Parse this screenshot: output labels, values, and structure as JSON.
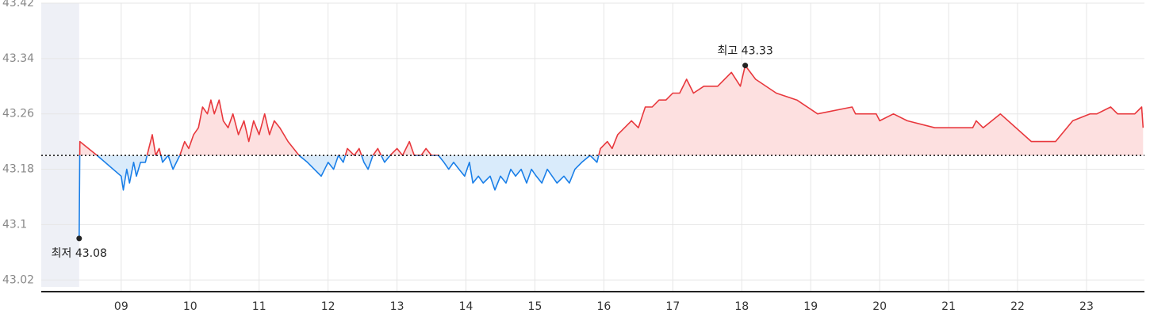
{
  "chart_data": {
    "type": "line",
    "x": [
      8.39,
      8.4,
      8.65,
      9.0,
      9.03,
      9.08,
      9.12,
      9.18,
      9.22,
      9.28,
      9.35,
      9.4,
      9.45,
      9.5,
      9.55,
      9.6,
      9.68,
      9.75,
      9.85,
      9.92,
      9.98,
      10.05,
      10.12,
      10.18,
      10.25,
      10.3,
      10.35,
      10.42,
      10.48,
      10.55,
      10.62,
      10.7,
      10.78,
      10.85,
      10.92,
      11.0,
      11.08,
      11.15,
      11.22,
      11.3,
      11.42,
      11.58,
      11.7,
      11.8,
      11.9,
      12.0,
      12.08,
      12.15,
      12.22,
      12.28,
      12.38,
      12.45,
      12.52,
      12.58,
      12.65,
      12.72,
      12.82,
      12.9,
      13.0,
      13.08,
      13.18,
      13.25,
      13.35,
      13.42,
      13.5,
      13.6,
      13.68,
      13.75,
      13.82,
      13.9,
      13.98,
      14.05,
      14.1,
      14.18,
      14.25,
      14.35,
      14.42,
      14.5,
      14.58,
      14.65,
      14.72,
      14.8,
      14.88,
      14.95,
      15.02,
      15.1,
      15.18,
      15.25,
      15.32,
      15.42,
      15.5,
      15.58,
      15.68,
      15.8,
      15.9,
      15.95,
      16.05,
      16.12,
      16.2,
      16.3,
      16.4,
      16.5,
      16.6,
      16.7,
      16.8,
      16.9,
      17.0,
      17.1,
      17.2,
      17.3,
      17.45,
      17.65,
      17.85,
      17.98,
      18.05,
      18.2,
      18.5,
      18.8,
      19.1,
      19.6,
      19.65,
      19.95,
      20.0,
      20.2,
      20.4,
      20.8,
      21.35,
      21.4,
      21.5,
      21.75,
      22.2,
      22.55,
      22.8,
      23.05,
      23.15,
      23.35,
      23.45,
      23.7,
      23.8,
      23.82
    ],
    "values": [
      43.08,
      43.22,
      43.2,
      43.17,
      43.15,
      43.18,
      43.16,
      43.19,
      43.17,
      43.19,
      43.19,
      43.21,
      43.23,
      43.2,
      43.21,
      43.19,
      43.2,
      43.18,
      43.2,
      43.22,
      43.21,
      43.23,
      43.24,
      43.27,
      43.26,
      43.28,
      43.26,
      43.28,
      43.25,
      43.24,
      43.26,
      43.23,
      43.25,
      43.22,
      43.25,
      43.23,
      43.26,
      43.23,
      43.25,
      43.24,
      43.22,
      43.2,
      43.19,
      43.18,
      43.17,
      43.19,
      43.18,
      43.2,
      43.19,
      43.21,
      43.2,
      43.21,
      43.19,
      43.18,
      43.2,
      43.21,
      43.19,
      43.2,
      43.21,
      43.2,
      43.22,
      43.2,
      43.2,
      43.21,
      43.2,
      43.2,
      43.19,
      43.18,
      43.19,
      43.18,
      43.17,
      43.19,
      43.16,
      43.17,
      43.16,
      43.17,
      43.15,
      43.17,
      43.16,
      43.18,
      43.17,
      43.18,
      43.16,
      43.18,
      43.17,
      43.16,
      43.18,
      43.17,
      43.16,
      43.17,
      43.16,
      43.18,
      43.19,
      43.2,
      43.19,
      43.21,
      43.22,
      43.21,
      43.23,
      43.24,
      43.25,
      43.24,
      43.27,
      43.27,
      43.28,
      43.28,
      43.29,
      43.29,
      43.31,
      43.29,
      43.3,
      43.3,
      43.32,
      43.3,
      43.33,
      43.31,
      43.29,
      43.28,
      43.26,
      43.27,
      43.26,
      43.26,
      43.25,
      43.26,
      43.25,
      43.24,
      43.24,
      43.25,
      43.24,
      43.26,
      43.22,
      43.22,
      43.25,
      43.26,
      43.26,
      43.27,
      43.26,
      43.26,
      43.27,
      43.24
    ],
    "baseline": 43.2,
    "up_color": "#e8383d",
    "down_color": "#1a7fe8",
    "xlim": [
      7.84,
      23.84
    ],
    "xticks": [
      {
        "value": 9,
        "label": "09"
      },
      10,
      11,
      12,
      13,
      14,
      15,
      16,
      17,
      18,
      19,
      20,
      21,
      22,
      23
    ],
    "ylim": [
      43.01,
      43.42
    ],
    "yticks": [
      43.02,
      43.1,
      43.18,
      43.26,
      43.34,
      43.42
    ],
    "grid": true,
    "annotations": [
      {
        "label": "최고 43.33",
        "x": 18.05,
        "y": 43.33
      },
      {
        "label": "최저 43.08",
        "x": 8.39,
        "y": 43.08
      }
    ]
  }
}
